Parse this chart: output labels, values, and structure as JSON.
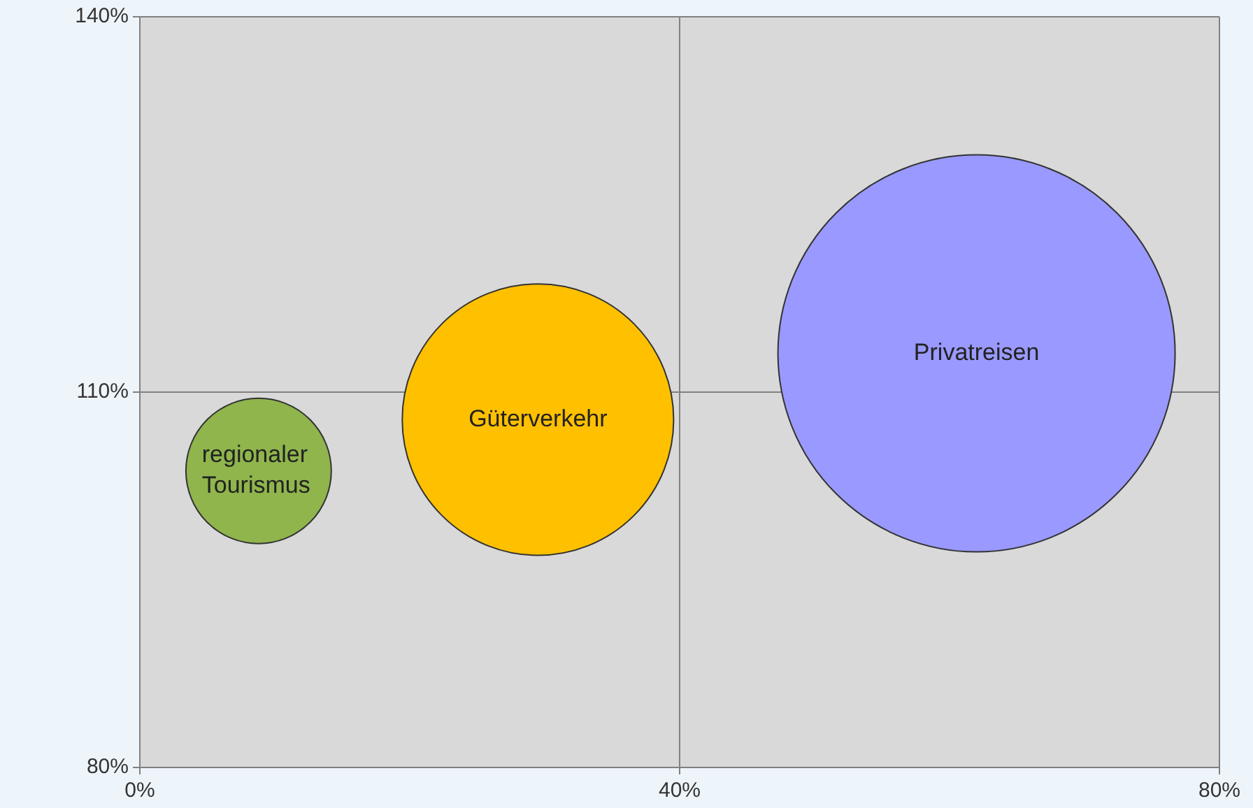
{
  "chart_data": {
    "type": "bubble",
    "series": [
      {
        "name": "regionaler Tourismus",
        "color": "#8fb54c",
        "x": [
          8.8
        ],
        "values": [
          103.7
        ],
        "sizes": [
          0.134
        ]
      },
      {
        "name": "Güterverkehr",
        "color": "#ffc000",
        "x": [
          29.5
        ],
        "values": [
          107.8
        ],
        "sizes": [
          0.467
        ]
      },
      {
        "name": "Privatreisen",
        "color": "#9999ff",
        "x": [
          62
        ],
        "values": [
          113.1
        ],
        "sizes": [
          1
        ]
      }
    ],
    "xlim": [
      0,
      80
    ],
    "xticks": [
      {
        "value": 0,
        "label": "0%"
      },
      {
        "value": 40,
        "label": "40%"
      },
      {
        "value": 80,
        "label": "80%"
      }
    ],
    "ylim": [
      80,
      140
    ],
    "yticks": [
      {
        "value": 80,
        "label": "80%"
      },
      {
        "value": 110,
        "label": "110%"
      },
      {
        "value": 140,
        "label": "140%"
      }
    ],
    "grid": true,
    "legend": false
  }
}
